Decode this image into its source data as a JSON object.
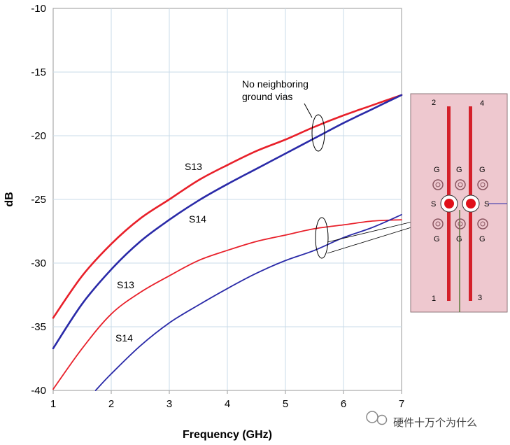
{
  "chart_data": {
    "type": "line",
    "xlabel": "Frequency (GHz)",
    "ylabel": "dB",
    "xlim": [
      1,
      7
    ],
    "ylim": [
      -40,
      -10
    ],
    "x_ticks": [
      "1",
      "2",
      "3",
      "4",
      "5",
      "6",
      "7"
    ],
    "y_ticks": [
      "-10",
      "-15",
      "-20",
      "-25",
      "-30",
      "-35",
      "-40"
    ],
    "grid": true,
    "series": [
      {
        "name": "S13",
        "group": "no_vias",
        "color": "#e8202a",
        "x": [
          1,
          1.5,
          2,
          2.5,
          3,
          3.5,
          4,
          4.5,
          5,
          5.5,
          6,
          6.5,
          7
        ],
        "y": [
          -34.3,
          -31.0,
          -28.5,
          -26.5,
          -25.0,
          -23.5,
          -22.3,
          -21.2,
          -20.3,
          -19.3,
          -18.4,
          -17.6,
          -16.8
        ]
      },
      {
        "name": "S14",
        "group": "no_vias",
        "color": "#2a2aa8",
        "x": [
          1,
          1.5,
          2,
          2.5,
          3,
          3.5,
          4,
          4.5,
          5,
          5.5,
          6,
          6.5,
          7
        ],
        "y": [
          -36.7,
          -33.2,
          -30.5,
          -28.3,
          -26.6,
          -25.1,
          -23.8,
          -22.6,
          -21.4,
          -20.2,
          -19.0,
          -17.9,
          -16.8
        ]
      },
      {
        "name": "S13",
        "group": "with_vias",
        "color": "#e8202a",
        "x": [
          1,
          1.5,
          2,
          2.5,
          3,
          3.5,
          4,
          4.5,
          5,
          5.5,
          6,
          6.5,
          7
        ],
        "y": [
          -39.9,
          -36.7,
          -34.0,
          -32.3,
          -31.0,
          -29.8,
          -29.0,
          -28.3,
          -27.8,
          -27.3,
          -27.0,
          -26.7,
          -26.6
        ]
      },
      {
        "name": "S14",
        "group": "with_vias",
        "color": "#2a2aa8",
        "x": [
          1.73,
          2,
          2.5,
          3,
          3.5,
          4,
          4.5,
          5,
          5.5,
          6,
          6.5,
          7
        ],
        "y": [
          -40.0,
          -38.7,
          -36.5,
          -34.7,
          -33.3,
          -32.0,
          -30.8,
          -29.8,
          -29.0,
          -28.0,
          -27.2,
          -26.2
        ]
      }
    ],
    "annotations": {
      "curve_labels": [
        "S13",
        "S14",
        "S13",
        "S14"
      ],
      "note_line1": "No neighboring",
      "note_line2": "ground vias"
    }
  },
  "inset": {
    "pin_numbers": [
      "2",
      "4",
      "1",
      "3"
    ],
    "ground_labels": [
      "G",
      "G",
      "G",
      "G",
      "G",
      "G"
    ],
    "signal_labels": [
      "S",
      "S"
    ]
  },
  "watermark": {
    "text": "硬件十万个为什么"
  }
}
